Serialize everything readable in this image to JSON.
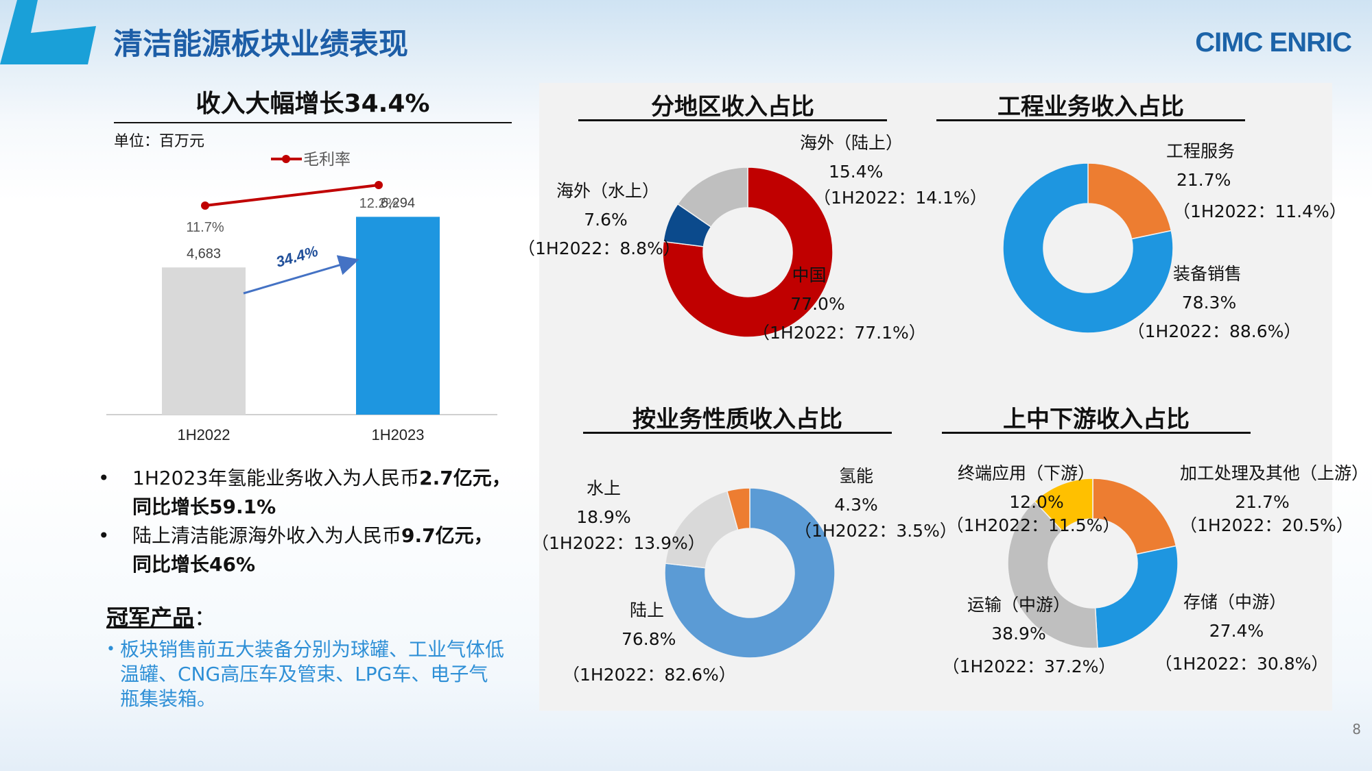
{
  "header": {
    "title": "清洁能源板块业绩表现",
    "brand": "CIMC ENRIC",
    "page_number": "8"
  },
  "colors": {
    "accent_blue": "#1aa0d8",
    "bar_grey": "#d9d9d9",
    "bar_blue": "#1e96e0",
    "red": "#c00000",
    "navy": "#0b4a8c"
  },
  "left": {
    "heading": "收入大幅增长34.4%",
    "unit": "单位：百万元",
    "growth_label": "34.4%",
    "bullets": [
      {
        "pre": "1H2023年氢能业务收入为人民币",
        "bold": "2.7亿元，",
        "line2": "同比增长59.1%"
      },
      {
        "pre": "陆上清洁能源海外收入为人民币",
        "bold": "9.7亿元，",
        "line2": "同比增长46%"
      }
    ],
    "champion_title": "冠军产品",
    "champion_colon": "：",
    "champion_text": [
      "板块销售前五大装备分别为球罐、工业气体低",
      "温罐、CNG高压车及管束、LPG车、电子气",
      "瓶集装箱。"
    ],
    "bullet_mark": "•"
  },
  "chart_data": [
    {
      "type": "bar",
      "categories": [
        "1H2022",
        "1H2023"
      ],
      "values": [
        4683,
        6294
      ],
      "value_labels": [
        "4,683",
        "6,294"
      ],
      "ylim": [
        0,
        7000
      ],
      "colors": [
        "#d9d9d9",
        "#1e96e0"
      ],
      "line_series": {
        "name": "毛利率",
        "values": [
          11.7,
          12.2
        ],
        "labels": [
          "11.7%",
          "12.2%"
        ],
        "color": "#c00000"
      },
      "legend": "top"
    },
    {
      "type": "pie",
      "title": "分地区收入占比",
      "slices": [
        {
          "label": "中国",
          "value": 77.0,
          "pct": "77.0%",
          "prior": "（1H2022：77.1%）",
          "color": "#c00000"
        },
        {
          "label": "海外（水上）",
          "value": 7.6,
          "pct": "7.6%",
          "prior": "（1H2022：8.8%）",
          "color": "#0b4a8c"
        },
        {
          "label": "海外（陆上）",
          "value": 15.4,
          "pct": "15.4%",
          "prior": "（1H2022：14.1%）",
          "color": "#bfbfbf"
        }
      ]
    },
    {
      "type": "pie",
      "title": "工程业务收入占比",
      "slices": [
        {
          "label": "工程服务",
          "value": 21.7,
          "pct": "21.7%",
          "prior": "（1H2022：11.4%）",
          "color": "#ed7d31"
        },
        {
          "label": "装备销售",
          "value": 78.3,
          "pct": "78.3%",
          "prior": "（1H2022：88.6%）",
          "color": "#1e96e0"
        }
      ]
    },
    {
      "type": "pie",
      "title": "按业务性质收入占比",
      "slices": [
        {
          "label": "陆上",
          "value": 76.8,
          "pct": "76.8%",
          "prior": "（1H2022：82.6%）",
          "color": "#5b9bd5"
        },
        {
          "label": "水上",
          "value": 18.9,
          "pct": "18.9%",
          "prior": "（1H2022：13.9%）",
          "color": "#d9d9d9"
        },
        {
          "label": "氢能",
          "value": 4.3,
          "pct": "4.3%",
          "prior": "（1H2022：3.5%）",
          "color": "#ed7d31"
        }
      ]
    },
    {
      "type": "pie",
      "title": "上中下游收入占比",
      "slices": [
        {
          "label": "加工处理及其他（上游）",
          "value": 21.7,
          "pct": "21.7%",
          "prior": "（1H2022：20.5%）",
          "color": "#ed7d31"
        },
        {
          "label": "存储（中游）",
          "value": 27.4,
          "pct": "27.4%",
          "prior": "（1H2022：30.8%）",
          "color": "#1e96e0"
        },
        {
          "label": "运输（中游）",
          "value": 38.9,
          "pct": "38.9%",
          "prior": "（1H2022：37.2%）",
          "color": "#bfbfbf"
        },
        {
          "label": "终端应用（下游）",
          "value": 12.0,
          "pct": "12.0%",
          "prior": "（1H2022：11.5%）",
          "color": "#ffc000"
        }
      ]
    }
  ]
}
